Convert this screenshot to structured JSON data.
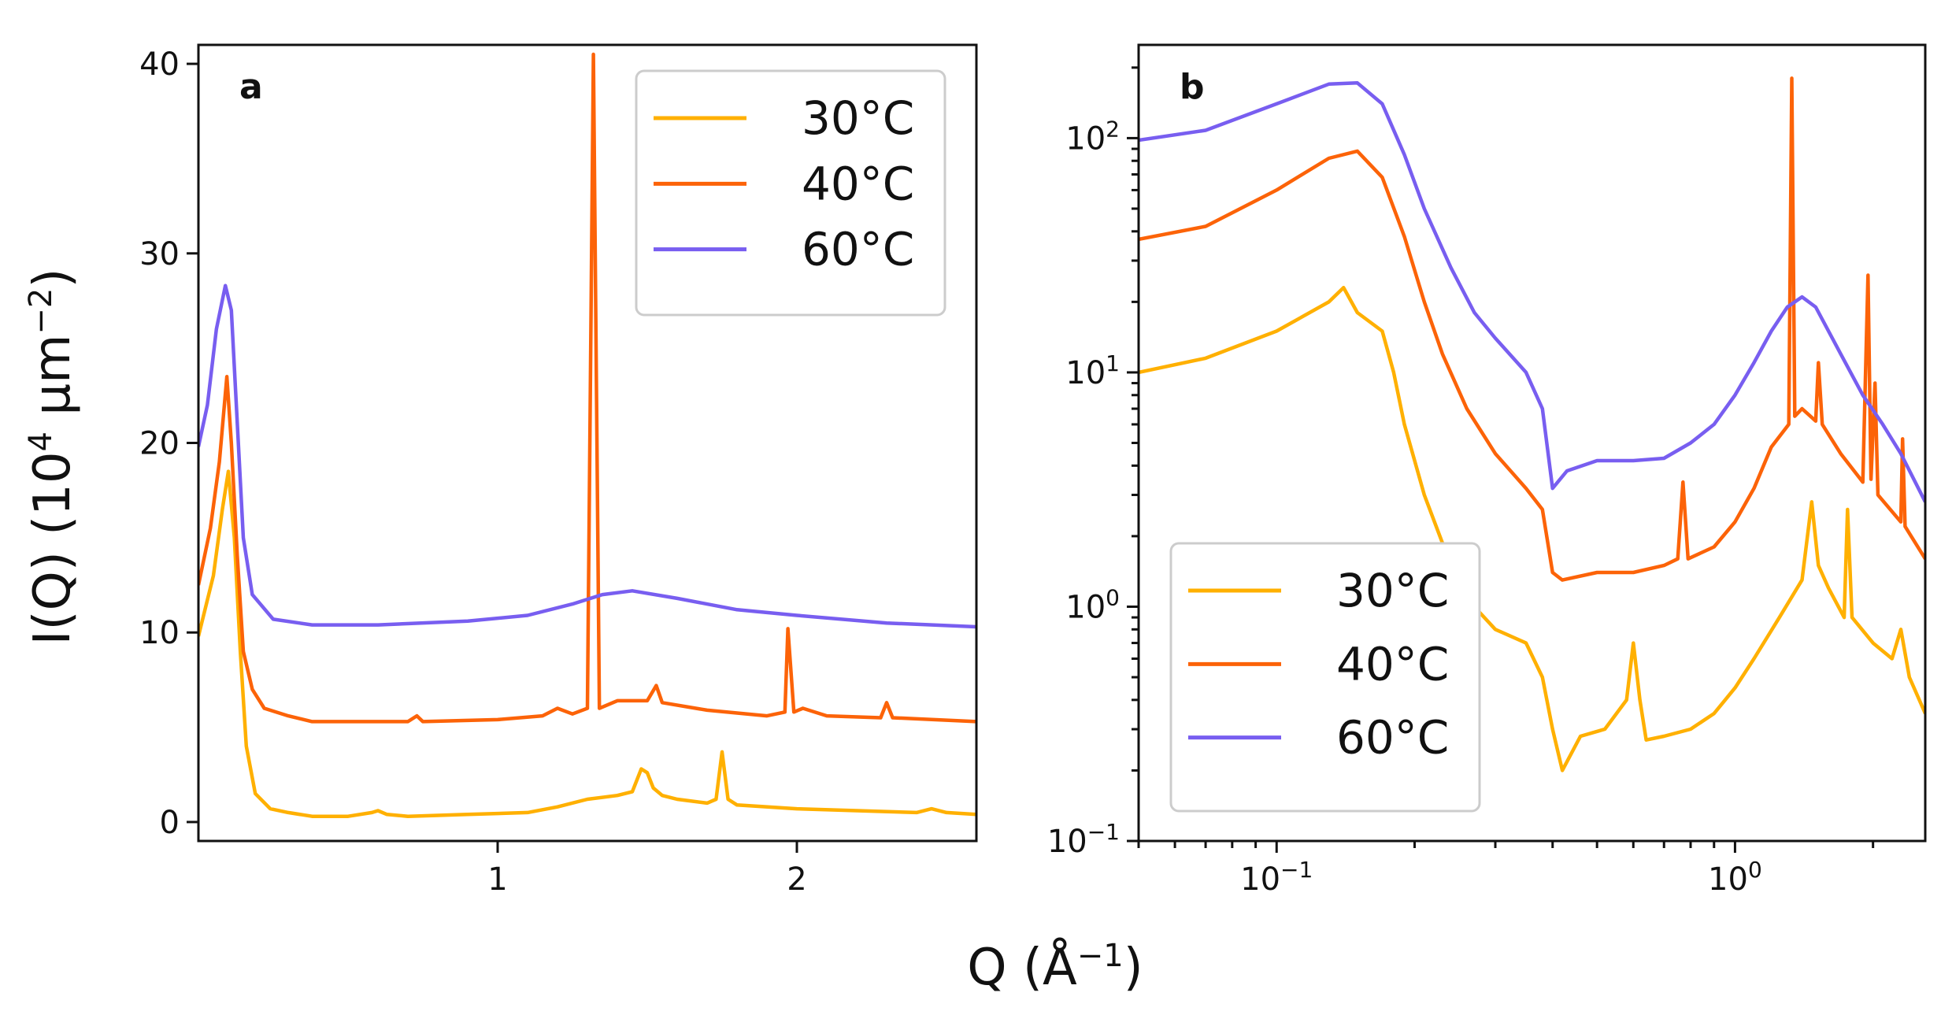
{
  "figure": {
    "ylabel": "I(Q) (10",
    "ylabel_sup1": "4",
    "ylabel_mid": " μm",
    "ylabel_sup2": "−2",
    "ylabel_end": ")",
    "xlabel": "Q (Å",
    "xlabel_sup": "−1",
    "xlabel_end": ")"
  },
  "chart_data": [
    {
      "type": "line",
      "panel_label": "a",
      "xscale": "linear",
      "yscale": "linear",
      "xlim": [
        0.0,
        2.6
      ],
      "ylim": [
        -1.0,
        41.0
      ],
      "xticks": [
        {
          "v": 1,
          "label": "1"
        },
        {
          "v": 2,
          "label": "2"
        }
      ],
      "yticks": [
        {
          "v": 0,
          "label": "0"
        },
        {
          "v": 10,
          "label": "10"
        },
        {
          "v": 20,
          "label": "20"
        },
        {
          "v": 30,
          "label": "30"
        },
        {
          "v": 40,
          "label": "40"
        }
      ],
      "legend_position": "top-right",
      "series": [
        {
          "name": "30°C",
          "color": "#ffb000",
          "points": [
            [
              0.0,
              9.8
            ],
            [
              0.05,
              13
            ],
            [
              0.08,
              16.5
            ],
            [
              0.1,
              18.5
            ],
            [
              0.12,
              15
            ],
            [
              0.14,
              9
            ],
            [
              0.16,
              4
            ],
            [
              0.19,
              1.5
            ],
            [
              0.24,
              0.7
            ],
            [
              0.3,
              0.5
            ],
            [
              0.38,
              0.3
            ],
            [
              0.5,
              0.3
            ],
            [
              0.58,
              0.5
            ],
            [
              0.6,
              0.6
            ],
            [
              0.63,
              0.4
            ],
            [
              0.7,
              0.3
            ],
            [
              0.9,
              0.4
            ],
            [
              1.1,
              0.5
            ],
            [
              1.2,
              0.8
            ],
            [
              1.3,
              1.2
            ],
            [
              1.4,
              1.4
            ],
            [
              1.45,
              1.6
            ],
            [
              1.48,
              2.8
            ],
            [
              1.5,
              2.6
            ],
            [
              1.52,
              1.8
            ],
            [
              1.55,
              1.4
            ],
            [
              1.6,
              1.2
            ],
            [
              1.7,
              1.0
            ],
            [
              1.73,
              1.2
            ],
            [
              1.75,
              3.7
            ],
            [
              1.77,
              1.2
            ],
            [
              1.8,
              0.9
            ],
            [
              2.0,
              0.7
            ],
            [
              2.2,
              0.6
            ],
            [
              2.4,
              0.5
            ],
            [
              2.45,
              0.7
            ],
            [
              2.5,
              0.5
            ],
            [
              2.6,
              0.4
            ]
          ]
        },
        {
          "name": "40°C",
          "color": "#fc6308",
          "points": [
            [
              0.0,
              12.5
            ],
            [
              0.04,
              15.5
            ],
            [
              0.07,
              19
            ],
            [
              0.095,
              23.5
            ],
            [
              0.11,
              20
            ],
            [
              0.13,
              14
            ],
            [
              0.15,
              9
            ],
            [
              0.18,
              7
            ],
            [
              0.22,
              6
            ],
            [
              0.3,
              5.6
            ],
            [
              0.38,
              5.3
            ],
            [
              0.6,
              5.3
            ],
            [
              0.7,
              5.3
            ],
            [
              0.73,
              5.6
            ],
            [
              0.75,
              5.3
            ],
            [
              1.0,
              5.4
            ],
            [
              1.15,
              5.6
            ],
            [
              1.2,
              6.0
            ],
            [
              1.25,
              5.7
            ],
            [
              1.3,
              6.0
            ],
            [
              1.32,
              40.5
            ],
            [
              1.34,
              6.0
            ],
            [
              1.4,
              6.4
            ],
            [
              1.5,
              6.4
            ],
            [
              1.53,
              7.2
            ],
            [
              1.55,
              6.3
            ],
            [
              1.7,
              5.9
            ],
            [
              1.9,
              5.6
            ],
            [
              1.96,
              5.8
            ],
            [
              1.97,
              10.2
            ],
            [
              1.99,
              5.8
            ],
            [
              2.02,
              6.0
            ],
            [
              2.1,
              5.6
            ],
            [
              2.28,
              5.5
            ],
            [
              2.3,
              6.3
            ],
            [
              2.32,
              5.5
            ],
            [
              2.6,
              5.3
            ]
          ]
        },
        {
          "name": "60°C",
          "color": "#785ef0",
          "points": [
            [
              0.0,
              19.8
            ],
            [
              0.03,
              22
            ],
            [
              0.06,
              26
            ],
            [
              0.09,
              28.3
            ],
            [
              0.11,
              27
            ],
            [
              0.13,
              21
            ],
            [
              0.15,
              15
            ],
            [
              0.18,
              12
            ],
            [
              0.25,
              10.7
            ],
            [
              0.38,
              10.4
            ],
            [
              0.6,
              10.4
            ],
            [
              0.9,
              10.6
            ],
            [
              1.1,
              10.9
            ],
            [
              1.25,
              11.5
            ],
            [
              1.35,
              12.0
            ],
            [
              1.45,
              12.2
            ],
            [
              1.6,
              11.8
            ],
            [
              1.8,
              11.2
            ],
            [
              2.0,
              10.9
            ],
            [
              2.3,
              10.5
            ],
            [
              2.6,
              10.3
            ]
          ]
        }
      ]
    },
    {
      "type": "line",
      "panel_label": "b",
      "xscale": "log",
      "yscale": "log",
      "xlim": [
        0.05,
        2.6
      ],
      "ylim": [
        0.1,
        250
      ],
      "xticks": [
        {
          "v": 0.1,
          "base": "10",
          "exp": "−1"
        },
        {
          "v": 1,
          "base": "10",
          "exp": "0"
        }
      ],
      "yticks": [
        {
          "v": 0.1,
          "base": "10",
          "exp": "−1"
        },
        {
          "v": 1,
          "base": "10",
          "exp": "0"
        },
        {
          "v": 10,
          "base": "10",
          "exp": "1"
        },
        {
          "v": 100,
          "base": "10",
          "exp": "2"
        }
      ],
      "legend_position": "bottom-left",
      "series": [
        {
          "name": "30°C",
          "color": "#ffb000",
          "points": [
            [
              0.05,
              10
            ],
            [
              0.07,
              11.5
            ],
            [
              0.1,
              15
            ],
            [
              0.13,
              20
            ],
            [
              0.14,
              23
            ],
            [
              0.15,
              18
            ],
            [
              0.17,
              15
            ],
            [
              0.18,
              10
            ],
            [
              0.19,
              6
            ],
            [
              0.21,
              3
            ],
            [
              0.24,
              1.5
            ],
            [
              0.27,
              1.0
            ],
            [
              0.3,
              0.8
            ],
            [
              0.35,
              0.7
            ],
            [
              0.38,
              0.5
            ],
            [
              0.4,
              0.3
            ],
            [
              0.42,
              0.2
            ],
            [
              0.46,
              0.28
            ],
            [
              0.52,
              0.3
            ],
            [
              0.58,
              0.4
            ],
            [
              0.6,
              0.7
            ],
            [
              0.62,
              0.4
            ],
            [
              0.64,
              0.27
            ],
            [
              0.7,
              0.28
            ],
            [
              0.8,
              0.3
            ],
            [
              0.9,
              0.35
            ],
            [
              1.0,
              0.45
            ],
            [
              1.1,
              0.6
            ],
            [
              1.25,
              0.9
            ],
            [
              1.4,
              1.3
            ],
            [
              1.47,
              2.8
            ],
            [
              1.52,
              1.5
            ],
            [
              1.6,
              1.2
            ],
            [
              1.73,
              0.9
            ],
            [
              1.76,
              2.6
            ],
            [
              1.8,
              0.9
            ],
            [
              2.0,
              0.7
            ],
            [
              2.2,
              0.6
            ],
            [
              2.3,
              0.8
            ],
            [
              2.4,
              0.5
            ],
            [
              2.6,
              0.35
            ]
          ]
        },
        {
          "name": "40°C",
          "color": "#fc6308",
          "points": [
            [
              0.05,
              37
            ],
            [
              0.07,
              42
            ],
            [
              0.1,
              60
            ],
            [
              0.13,
              82
            ],
            [
              0.15,
              88
            ],
            [
              0.17,
              68
            ],
            [
              0.19,
              38
            ],
            [
              0.21,
              20
            ],
            [
              0.23,
              12
            ],
            [
              0.26,
              7
            ],
            [
              0.3,
              4.5
            ],
            [
              0.35,
              3.2
            ],
            [
              0.38,
              2.6
            ],
            [
              0.4,
              1.4
            ],
            [
              0.42,
              1.3
            ],
            [
              0.5,
              1.4
            ],
            [
              0.6,
              1.4
            ],
            [
              0.7,
              1.5
            ],
            [
              0.75,
              1.6
            ],
            [
              0.77,
              3.4
            ],
            [
              0.79,
              1.6
            ],
            [
              0.9,
              1.8
            ],
            [
              1.0,
              2.3
            ],
            [
              1.1,
              3.2
            ],
            [
              1.2,
              4.8
            ],
            [
              1.31,
              6.0
            ],
            [
              1.33,
              180
            ],
            [
              1.35,
              6.5
            ],
            [
              1.4,
              7.0
            ],
            [
              1.5,
              6.2
            ],
            [
              1.52,
              11
            ],
            [
              1.55,
              6.0
            ],
            [
              1.7,
              4.5
            ],
            [
              1.9,
              3.4
            ],
            [
              1.95,
              26
            ],
            [
              1.98,
              3.5
            ],
            [
              2.02,
              9
            ],
            [
              2.05,
              3.0
            ],
            [
              2.3,
              2.3
            ],
            [
              2.32,
              5.2
            ],
            [
              2.35,
              2.2
            ],
            [
              2.6,
              1.6
            ]
          ]
        },
        {
          "name": "60°C",
          "color": "#785ef0",
          "points": [
            [
              0.05,
              98
            ],
            [
              0.07,
              108
            ],
            [
              0.1,
              140
            ],
            [
              0.13,
              170
            ],
            [
              0.15,
              172
            ],
            [
              0.17,
              140
            ],
            [
              0.19,
              85
            ],
            [
              0.21,
              50
            ],
            [
              0.24,
              28
            ],
            [
              0.27,
              18
            ],
            [
              0.3,
              14
            ],
            [
              0.35,
              10
            ],
            [
              0.38,
              7
            ],
            [
              0.4,
              3.2
            ],
            [
              0.43,
              3.8
            ],
            [
              0.5,
              4.2
            ],
            [
              0.6,
              4.2
            ],
            [
              0.7,
              4.3
            ],
            [
              0.8,
              5.0
            ],
            [
              0.9,
              6.0
            ],
            [
              1.0,
              8.0
            ],
            [
              1.1,
              11
            ],
            [
              1.2,
              15
            ],
            [
              1.3,
              19
            ],
            [
              1.4,
              21
            ],
            [
              1.5,
              19
            ],
            [
              1.7,
              12
            ],
            [
              1.9,
              8
            ],
            [
              2.1,
              6
            ],
            [
              2.3,
              4.5
            ],
            [
              2.6,
              2.8
            ]
          ]
        }
      ]
    }
  ]
}
